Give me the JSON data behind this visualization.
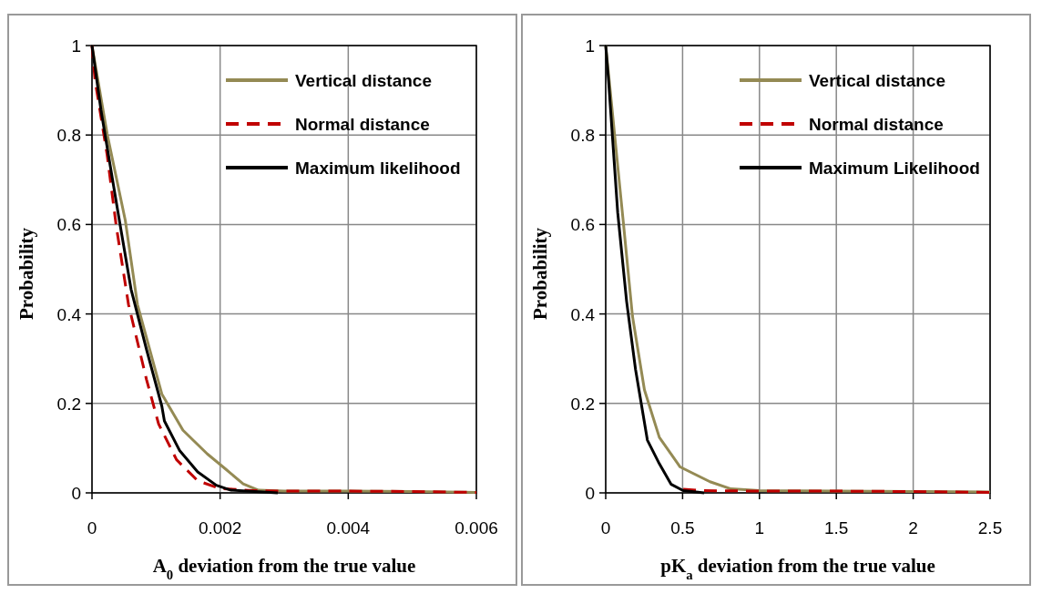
{
  "chart_data": [
    {
      "type": "line",
      "xlabel": "A$_{0}$ deviation from the true value",
      "ylabel": "Probability",
      "xlim": [
        0,
        0.006
      ],
      "xticks": [
        0,
        0.002,
        0.004,
        0.006
      ],
      "ylim": [
        0,
        1
      ],
      "yticks": [
        0,
        0.2,
        0.4,
        0.6,
        0.8,
        1
      ],
      "grid": true,
      "legend": "top right",
      "series": [
        {
          "name": "Vertical distance",
          "color": "#948a54",
          "x": [
            0,
            0.000236,
            0.00052,
            0.00071,
            0.00109,
            0.00142,
            0.0018,
            0.00208,
            0.00236,
            0.0026,
            0.003,
            0.004,
            0.005,
            0.006
          ],
          "values": [
            1,
            0.803,
            0.609,
            0.421,
            0.221,
            0.14,
            0.087,
            0.054,
            0.02,
            0.006,
            0.004,
            0.004,
            0.003,
            0.001
          ]
        },
        {
          "name": "Normal distance",
          "color": "#c00000",
          "line_style": "dashed",
          "x": [
            0,
            4.7e-05,
            0.000236,
            0.00038,
            0.00057,
            0.00085,
            0.00104,
            0.00132,
            0.00165,
            0.00199,
            0.0025,
            0.003,
            0.004,
            0.005,
            0.006
          ],
          "values": [
            1,
            0.923,
            0.756,
            0.595,
            0.421,
            0.254,
            0.154,
            0.074,
            0.027,
            0.01,
            0.005,
            0.004,
            0.004,
            0.003,
            0.001
          ]
        },
        {
          "name": "Maximum likelihood",
          "color": "#000000",
          "x": [
            0,
            0.00014,
            0.00038,
            0.00061,
            0.00085,
            0.00109,
            0.00113,
            0.00137,
            0.00165,
            0.00194,
            0.00217,
            0.0029
          ],
          "values": [
            1,
            0.856,
            0.649,
            0.455,
            0.321,
            0.194,
            0.161,
            0.094,
            0.047,
            0.017,
            0.006,
            0
          ]
        }
      ]
    },
    {
      "type": "line",
      "xlabel": "pK$_{a}$ deviation from the true value",
      "ylabel": "Probability",
      "xlim": [
        0,
        2.5
      ],
      "xticks": [
        0,
        0.5,
        1,
        1.5,
        2,
        2.5
      ],
      "ylim": [
        0,
        1
      ],
      "yticks": [
        0,
        0.2,
        0.4,
        0.6,
        0.8,
        1
      ],
      "grid": true,
      "legend": "top right",
      "series": [
        {
          "name": "Vertical distance",
          "color": "#948a54",
          "x": [
            0,
            0.058,
            0.116,
            0.174,
            0.252,
            0.349,
            0.484,
            0.678,
            0.814,
            1,
            1.5,
            2,
            2.5
          ],
          "values": [
            1,
            0.8,
            0.6,
            0.395,
            0.23,
            0.124,
            0.058,
            0.025,
            0.009,
            0.005,
            0.004,
            0.003,
            0.002
          ]
        },
        {
          "name": "Normal distance",
          "color": "#c00000",
          "line_style": "dashed",
          "x": [
            0.504,
            0.64,
            1,
            1.5,
            2,
            2.5
          ],
          "values": [
            0.008,
            0.005,
            0.004,
            0.004,
            0.003,
            0.001
          ]
        },
        {
          "name": "Maximum Likelihood",
          "color": "#000000",
          "x": [
            0,
            0.019,
            0.078,
            0.136,
            0.194,
            0.271,
            0.349,
            0.426,
            0.504,
            0.64
          ],
          "values": [
            1,
            0.92,
            0.627,
            0.428,
            0.276,
            0.118,
            0.065,
            0.019,
            0.005,
            0
          ]
        }
      ]
    }
  ]
}
